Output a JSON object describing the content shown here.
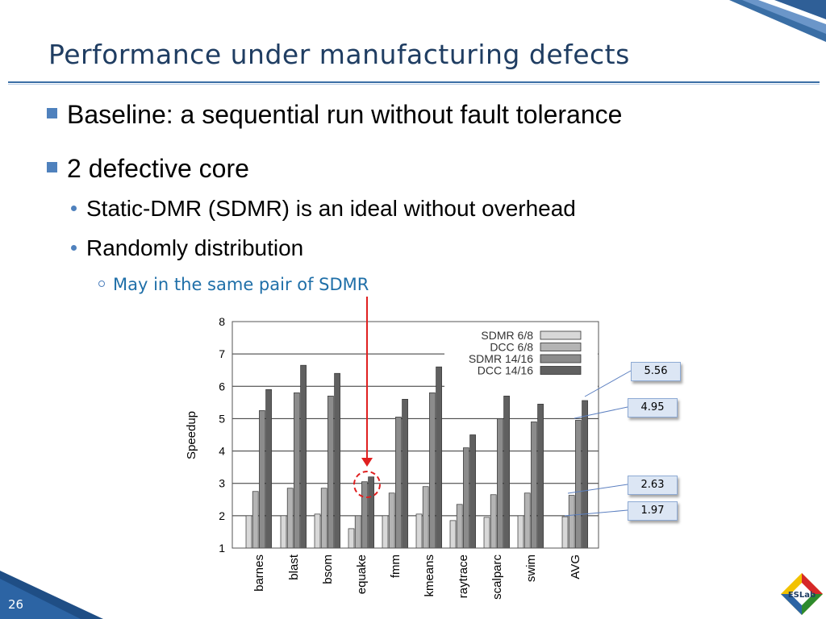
{
  "slide": {
    "title": "Performance under manufacturing defects",
    "page_number": "26",
    "logo_text": "ESLab"
  },
  "bullets": [
    {
      "level": 1,
      "text": "Baseline: a sequential run without fault tolerance"
    },
    {
      "level": 1,
      "text": "2 defective core"
    },
    {
      "level": 2,
      "text": "Static-DMR (SDMR) is an ideal without overhead"
    },
    {
      "level": 2,
      "text": "Randomly distribution"
    },
    {
      "level": 3,
      "text": "May in the same pair of SDMR"
    }
  ],
  "callouts": [
    "5.56",
    "4.95",
    "2.63",
    "1.97"
  ],
  "colors": {
    "title": "#1f3d62",
    "accent": "#4f81bd",
    "sub_bullet": "#1f6fa8",
    "arrow": "#e02020",
    "callout_bg": "#dce6f4"
  },
  "chart_data": {
    "type": "bar",
    "ylabel": "Speedup",
    "ylim": [
      1,
      8
    ],
    "yticks": [
      "1",
      "2",
      "3",
      "4",
      "5",
      "6",
      "7",
      "8"
    ],
    "grid": "horizontal",
    "legend_position": "top-right",
    "categories": [
      "barnes",
      "blast",
      "bsom",
      "equake",
      "fmm",
      "kmeans",
      "raytrace",
      "scalparc",
      "swim",
      "AVG"
    ],
    "series": [
      {
        "name": "SDMR 6/8",
        "color": "#d8d8d8",
        "values": [
          2.0,
          2.0,
          2.05,
          1.6,
          2.0,
          2.05,
          1.85,
          1.95,
          2.0,
          1.97
        ]
      },
      {
        "name": "DCC 6/8",
        "color": "#b4b4b4",
        "values": [
          2.75,
          2.85,
          2.85,
          2.0,
          2.7,
          2.9,
          2.35,
          2.65,
          2.7,
          2.63
        ]
      },
      {
        "name": "SDMR 14/16",
        "color": "#8c8c8c",
        "values": [
          5.25,
          5.8,
          5.7,
          3.05,
          5.05,
          5.8,
          4.1,
          5.0,
          4.9,
          4.95
        ]
      },
      {
        "name": "DCC 14/16",
        "color": "#606060",
        "values": [
          5.9,
          6.65,
          6.4,
          3.2,
          5.6,
          6.6,
          4.5,
          5.7,
          5.45,
          5.56
        ]
      }
    ],
    "highlight_category": "equake"
  }
}
